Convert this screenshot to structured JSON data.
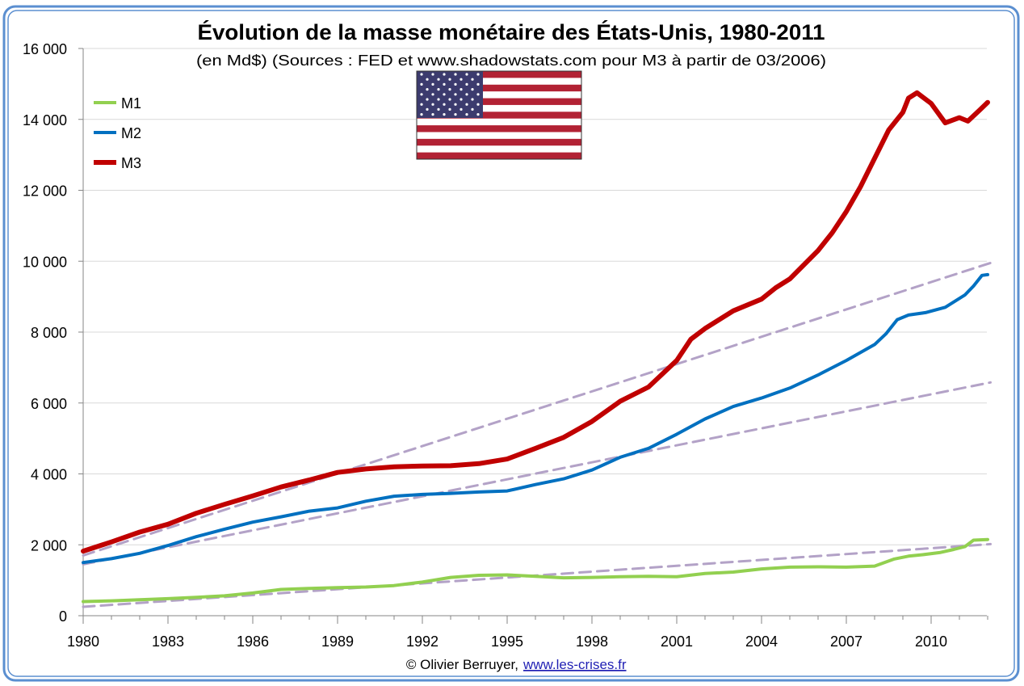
{
  "chart_data": {
    "type": "line",
    "title": "Évolution de la masse monétaire des États-Unis, 1980-2011",
    "subtitle": "(en Md$) (Sources : FED et www.shadowstats.com pour M3 à partir de 03/2006)",
    "xlabel": "",
    "ylabel": "",
    "xlim": [
      1980,
      2012
    ],
    "ylim": [
      0,
      16000
    ],
    "x_tick_labels": [
      "1980",
      "1983",
      "1986",
      "1989",
      "1992",
      "1995",
      "1998",
      "2001",
      "2004",
      "2007",
      "2010"
    ],
    "y_tick_labels": [
      "0",
      "2 000",
      "4 000",
      "6 000",
      "8 000",
      "10 000",
      "12 000",
      "14 000",
      "16 000"
    ],
    "grid": true,
    "legend_position": "top-left",
    "series": [
      {
        "name": "M1",
        "color": "#92d050",
        "x": [
          1980,
          1981,
          1982,
          1983,
          1984,
          1985,
          1986,
          1987,
          1988,
          1989,
          1990,
          1991,
          1992,
          1993,
          1994,
          1995,
          1996,
          1997,
          1998,
          1999,
          2000,
          2001,
          2002,
          2003,
          2004,
          2005,
          2006,
          2007,
          2008,
          2008.7,
          2009.2,
          2009.7,
          2010.3,
          2010.8,
          2011.2,
          2011.5,
          2012
        ],
        "y": [
          400,
          420,
          450,
          480,
          520,
          560,
          640,
          740,
          770,
          790,
          810,
          850,
          950,
          1080,
          1140,
          1150,
          1110,
          1070,
          1080,
          1100,
          1110,
          1100,
          1190,
          1230,
          1320,
          1370,
          1380,
          1370,
          1400,
          1600,
          1680,
          1720,
          1780,
          1870,
          1950,
          2130,
          2150
        ]
      },
      {
        "name": "M2",
        "color": "#0070c0",
        "x": [
          1980,
          1981,
          1982,
          1983,
          1984,
          1985,
          1986,
          1987,
          1988,
          1989,
          1990,
          1991,
          1992,
          1993,
          1994,
          1995,
          1996,
          1997,
          1998,
          1999,
          2000,
          2001,
          2002,
          2003,
          2004,
          2005,
          2006,
          2007,
          2008,
          2008.4,
          2008.8,
          2009.2,
          2009.8,
          2010.5,
          2011.2,
          2011.5,
          2011.8,
          2012
        ],
        "y": [
          1500,
          1610,
          1760,
          1980,
          2230,
          2440,
          2640,
          2790,
          2950,
          3040,
          3230,
          3370,
          3420,
          3450,
          3490,
          3520,
          3700,
          3860,
          4110,
          4470,
          4720,
          5120,
          5550,
          5900,
          6140,
          6420,
          6790,
          7200,
          7650,
          7950,
          8350,
          8480,
          8550,
          8700,
          9050,
          9300,
          9600,
          9620
        ]
      },
      {
        "name": "M3",
        "color": "#c00000",
        "x": [
          1980,
          1981,
          1982,
          1983,
          1984,
          1985,
          1986,
          1987,
          1988,
          1989,
          1990,
          1991,
          1992,
          1993,
          1994,
          1995,
          1996,
          1997,
          1998,
          1999,
          2000,
          2001,
          2001.5,
          2002,
          2003,
          2004,
          2004.5,
          2005,
          2006,
          2006.5,
          2007,
          2007.5,
          2008,
          2008.5,
          2009,
          2009.2,
          2009.5,
          2010,
          2010.5,
          2011,
          2011.3,
          2011.7,
          2012
        ],
        "y": [
          1820,
          2080,
          2360,
          2580,
          2890,
          3140,
          3380,
          3630,
          3830,
          4040,
          4140,
          4200,
          4220,
          4230,
          4290,
          4420,
          4720,
          5030,
          5480,
          6050,
          6450,
          7200,
          7800,
          8100,
          8600,
          8930,
          9250,
          9500,
          10300,
          10800,
          11400,
          12100,
          12900,
          13700,
          14200,
          14600,
          14750,
          14450,
          13900,
          14050,
          13950,
          14250,
          14480
        ]
      },
      {
        "name": "",
        "style": "dashed trend",
        "color": "#b3a2c7",
        "x": [
          1980,
          2012.1
        ],
        "y": [
          1700,
          9950
        ]
      },
      {
        "name": "",
        "style": "dashed trend",
        "color": "#b3a2c7",
        "x": [
          1980,
          2012.1
        ],
        "y": [
          1450,
          6580
        ]
      },
      {
        "name": "",
        "style": "dashed trend",
        "color": "#b3a2c7",
        "x": [
          1980,
          2012.1
        ],
        "y": [
          250,
          2020
        ]
      }
    ],
    "legend": [
      "M1",
      "M2",
      "M3"
    ]
  },
  "footer": {
    "credit": "© Olivier Berruyer,",
    "link": "www.les-crises.fr"
  },
  "frame_color": "#5b8fd0",
  "flag_icon": "usa-flag-icon"
}
